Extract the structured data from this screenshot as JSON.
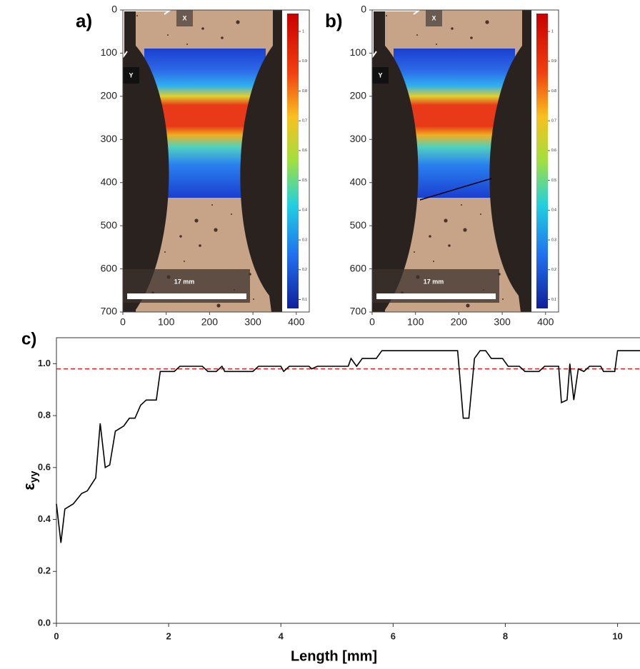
{
  "chart_data": [
    {
      "type": "image",
      "panel_label": "a)",
      "xlim": [
        0,
        430
      ],
      "ylim": [
        0,
        700
      ],
      "y_inverted": true,
      "xticks": [
        0,
        100,
        200,
        300,
        400
      ],
      "yticks": [
        0,
        100,
        200,
        300,
        400,
        500,
        600,
        700
      ],
      "axis_x_label": "X",
      "axis_y_label": "Y",
      "scale_bar": "17 mm",
      "colorbar_lim": [
        0.07,
        1.06
      ],
      "colorbar_ticks": [
        1,
        0.9,
        0.8,
        0.7,
        0.6,
        0.5,
        0.4,
        0.3,
        0.2,
        0.1
      ],
      "crack": false
    },
    {
      "type": "image",
      "panel_label": "b)",
      "xlim": [
        0,
        430
      ],
      "ylim": [
        0,
        700
      ],
      "y_inverted": true,
      "xticks": [
        0,
        100,
        200,
        300,
        400
      ],
      "yticks": [
        0,
        100,
        200,
        300,
        400,
        500,
        600,
        700
      ],
      "axis_x_label": "X",
      "axis_y_label": "Y",
      "scale_bar": "17 mm",
      "colorbar_lim": [
        0.07,
        1.06
      ],
      "colorbar_ticks": [
        1,
        0.9,
        0.8,
        0.7,
        0.6,
        0.5,
        0.4,
        0.3,
        0.2,
        0.1
      ],
      "crack": true
    },
    {
      "type": "line",
      "panel_label": "c)",
      "x_label": "Length [mm]",
      "y_label": {
        "symbol": "ε",
        "subscript": "yy"
      },
      "xlim": [
        0,
        10.4
      ],
      "ylim": [
        0,
        1.1
      ],
      "xticks": [
        0,
        2,
        4,
        6,
        8,
        10
      ],
      "yticks": [
        {
          "value": 0,
          "label": "0.0"
        },
        {
          "value": 0.2,
          "label": "0.2"
        },
        {
          "value": 0.4,
          "label": "0.4"
        },
        {
          "value": 0.6,
          "label": "0.6"
        },
        {
          "value": 0.8,
          "label": "0.8"
        },
        {
          "value": 1,
          "label": "1.0"
        }
      ],
      "color": "#000000",
      "reference_line": 0.98,
      "reference_color": "#e02020",
      "x": [
        0,
        0.08,
        0.15,
        0.3,
        0.45,
        0.55,
        0.7,
        0.78,
        0.87,
        0.95,
        1.05,
        1.2,
        1.3,
        1.4,
        1.5,
        1.6,
        1.78,
        1.85,
        2.0,
        2.1,
        2.2,
        2.6,
        2.7,
        2.85,
        2.95,
        3.0,
        3.5,
        3.6,
        4.0,
        4.05,
        4.15,
        4.5,
        4.55,
        4.65,
        5.2,
        5.25,
        5.35,
        5.45,
        5.7,
        5.8,
        7.15,
        7.25,
        7.35,
        7.45,
        7.55,
        7.65,
        7.75,
        7.95,
        8.05,
        8.25,
        8.35,
        8.6,
        8.7,
        8.95,
        9.0,
        9.1,
        9.15,
        9.22,
        9.3,
        9.4,
        9.5,
        9.7,
        9.75,
        9.95,
        10.0,
        10.4
      ],
      "values": [
        0.46,
        0.31,
        0.44,
        0.46,
        0.5,
        0.51,
        0.56,
        0.77,
        0.6,
        0.61,
        0.74,
        0.76,
        0.79,
        0.79,
        0.84,
        0.86,
        0.86,
        0.97,
        0.97,
        0.97,
        0.99,
        0.99,
        0.97,
        0.97,
        0.99,
        0.97,
        0.97,
        0.99,
        0.99,
        0.97,
        0.99,
        0.99,
        0.98,
        0.99,
        0.99,
        1.02,
        0.99,
        1.02,
        1.02,
        1.05,
        1.05,
        0.79,
        0.79,
        1.02,
        1.05,
        1.05,
        1.02,
        1.02,
        0.99,
        0.99,
        0.97,
        0.97,
        0.99,
        0.99,
        0.85,
        0.86,
        1.0,
        0.86,
        0.98,
        0.97,
        0.99,
        0.99,
        0.97,
        0.97,
        1.05,
        1.05
      ]
    }
  ]
}
